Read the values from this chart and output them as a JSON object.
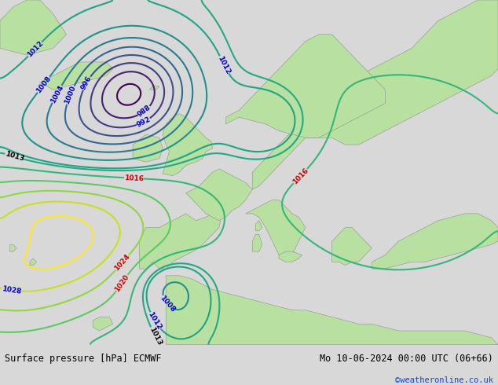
{
  "title_left": "Surface pressure [hPa] ECMWF",
  "title_right": "Mo 10-06-2024 00:00 UTC (06+66)",
  "watermark": "©weatheronline.co.uk",
  "ocean_color": "#d0d0d0",
  "land_color": "#b8e0a0",
  "coast_color": "#888888",
  "blue_color": "#0000cc",
  "red_color": "#cc0000",
  "black_color": "#000000",
  "watermark_color": "#1144cc",
  "bottom_bg": "#d8d8d8",
  "figsize": [
    6.34,
    4.9
  ],
  "dpi": 100
}
